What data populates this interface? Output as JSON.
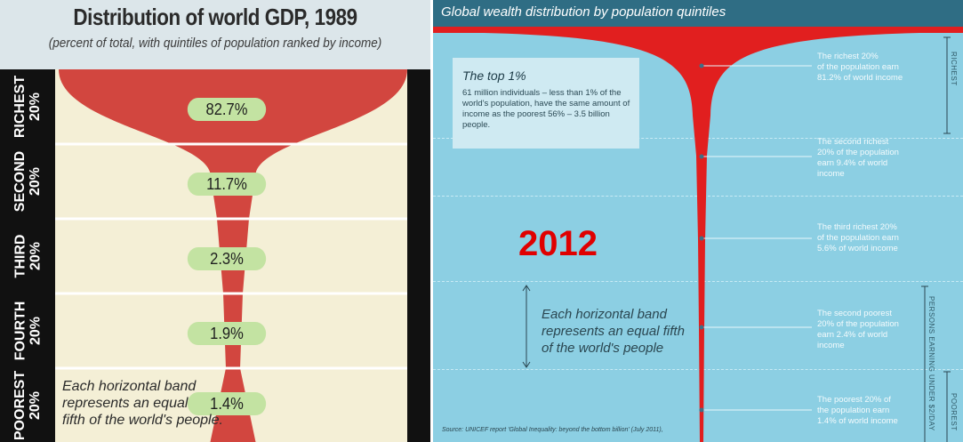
{
  "left_panel": {
    "title": "Distribution of world GDP, 1989",
    "subtitle": "(percent of total, with quintiles of population ranked by income)",
    "note": "Each horizontal band represents an equal fifth of the world's people.",
    "note_lines": [
      "Each horizontal band",
      "represents an equal",
      "fifth of the world's people."
    ],
    "colors": {
      "funnel": "#d2463f",
      "background": "#f4efd6",
      "label_bar": "#111111",
      "pill": "#c3e3a2"
    }
  },
  "right_panel": {
    "title": "Global wealth distribution by population quintiles",
    "year": "2012",
    "top1_box": {
      "heading": "The top 1%",
      "body": "61 million individuals – less than 1% of the world's population, have the same amount of income as the poorest 56% – 3.5 billion people."
    },
    "band_note": "Each horizontal band represents an equal fifth of the world's people",
    "band_note_lines": [
      "Each horizontal band",
      "represents an equal fifth",
      "of the world's people"
    ],
    "side_label_richest": "RICHEST",
    "side_label_poorest": "POOREST",
    "side_label_persons": "PERSONS EARNING UNDER $2/DAY",
    "source": "Source: UNICEF report 'Global Inequality: beyond the bottom billion' (July 2011),",
    "colors": {
      "funnel": "#e11f1f",
      "background": "#8ccfe3",
      "title_bar": "#2f6d84",
      "text": "#f4fbfd"
    }
  },
  "chart_data": [
    {
      "type": "bar",
      "orientation": "horizontal-funnel",
      "title": "Distribution of world GDP, 1989",
      "subtitle": "(percent of total, with quintiles of population ranked by income)",
      "categories": [
        "RICHEST 20%",
        "SECOND 20%",
        "THIRD 20%",
        "FOURTH 20%",
        "POOREST 20%"
      ],
      "category_lines": [
        [
          "RICHEST",
          "20%"
        ],
        [
          "SECOND",
          "20%"
        ],
        [
          "THIRD",
          "20%"
        ],
        [
          "FOURTH",
          "20%"
        ],
        [
          "POOREST",
          "20%"
        ]
      ],
      "values": [
        82.7,
        11.7,
        2.3,
        1.9,
        1.4
      ],
      "value_labels": [
        "82.7%",
        "11.7%",
        "2.3%",
        "1.9%",
        "1.4%"
      ],
      "unit": "%"
    },
    {
      "type": "bar",
      "orientation": "horizontal-funnel",
      "title": "Global wealth distribution by population quintiles",
      "categories": [
        "The richest 20% of the population earn 81.2% of world income",
        "The second richest 20% of the population earn 9.4% of world income",
        "The third richest 20% of the population earn 5.6% of world income",
        "The second poorest 20% of the population earn 2.4% of world income",
        "The poorest 20% of the population earn 1.4% of world income"
      ],
      "category_lines": [
        [
          "The richest 20%",
          "of the population earn",
          "81.2% of world income"
        ],
        [
          "The second richest",
          "20% of the population",
          "earn 9.4% of world",
          "income"
        ],
        [
          "The third richest 20%",
          "of the population earn",
          "5.6% of world income"
        ],
        [
          "The second poorest",
          "20% of the population",
          "earn 2.4% of world",
          "income"
        ],
        [
          "The poorest 20% of",
          "the population earn",
          "1.4% of world income"
        ]
      ],
      "values": [
        81.2,
        9.4,
        5.6,
        2.4,
        1.4
      ],
      "unit": "%"
    }
  ]
}
